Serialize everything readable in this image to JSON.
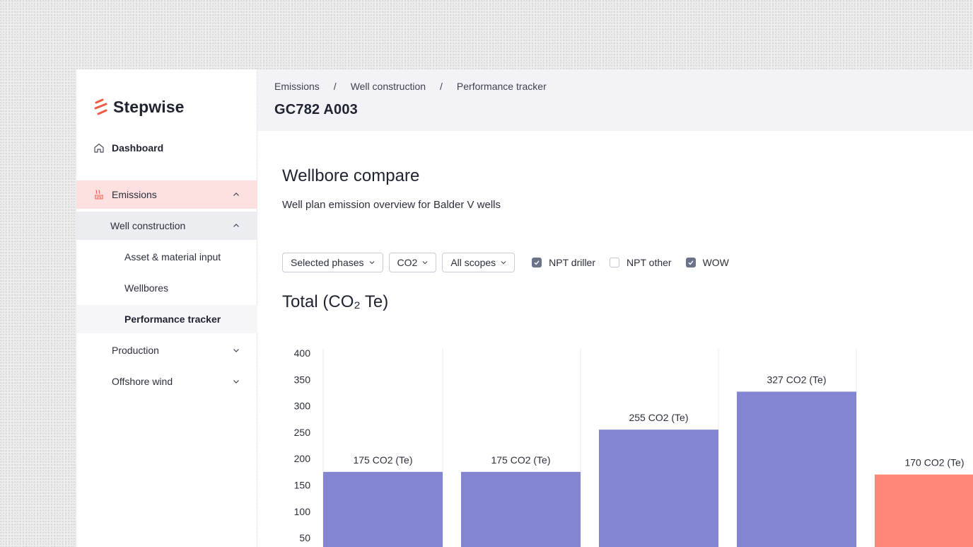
{
  "brand": {
    "name": "Stepwise",
    "accent": "#ef5a47"
  },
  "sidebar": {
    "dashboard": "Dashboard",
    "emissions": "Emissions",
    "well_construction": "Well construction",
    "asset_material": "Asset & material input",
    "wellbores": "Wellbores",
    "performance_tracker": "Performance tracker",
    "production": "Production",
    "offshore_wind": "Offshore wind"
  },
  "header": {
    "breadcrumb": [
      "Emissions",
      "Well construction",
      "Performance tracker"
    ],
    "separator": "/",
    "title": "GC782 A003"
  },
  "section": {
    "title": "Wellbore compare",
    "subtitle": "Well plan emission overview for Balder V wells"
  },
  "filters": {
    "phases": "Selected phases",
    "gas": "CO2",
    "scopes": "All scopes",
    "checks": [
      {
        "label": "NPT driller",
        "checked": true
      },
      {
        "label": "NPT other",
        "checked": false
      },
      {
        "label": "WOW",
        "checked": true
      }
    ]
  },
  "chart_data": {
    "type": "bar",
    "title": "Total (CO₂ Te)",
    "yticks": [
      "400",
      "350",
      "300",
      "250",
      "200",
      "150",
      "100",
      "50"
    ],
    "ylim": [
      0,
      400
    ],
    "values": [
      175,
      175,
      255,
      327,
      170
    ],
    "labels": [
      "175 CO2 (Te)",
      "175 CO2 (Te)",
      "255 CO2 (Te)",
      "327 CO2 (Te)",
      "170 CO2 (Te)"
    ],
    "colors": [
      "#8485d0",
      "#8485d0",
      "#8485d0",
      "#8485d0",
      "#ff877a"
    ]
  }
}
